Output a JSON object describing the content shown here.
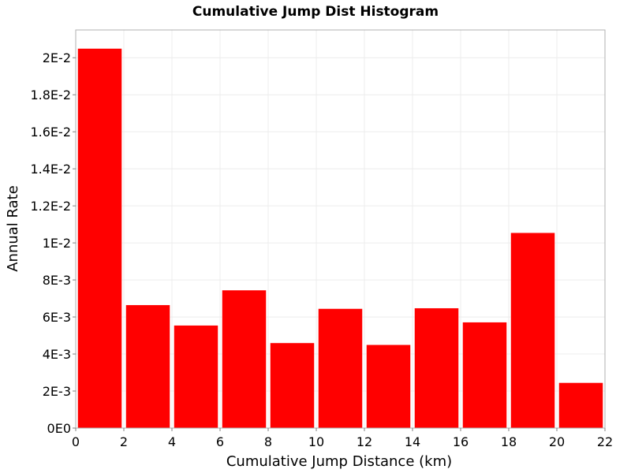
{
  "chart_data": {
    "type": "bar",
    "title": "Cumulative Jump Dist Histogram",
    "xlabel": "Cumulative Jump Distance (km)",
    "ylabel": "Annual Rate",
    "xlim": [
      0,
      22
    ],
    "ylim": [
      0,
      0.0215
    ],
    "x_ticks": [
      {
        "value": 0,
        "label": "0"
      },
      {
        "value": 2,
        "label": "2"
      },
      {
        "value": 4,
        "label": "4"
      },
      {
        "value": 6,
        "label": "6"
      },
      {
        "value": 8,
        "label": "8"
      },
      {
        "value": 10,
        "label": "10"
      },
      {
        "value": 12,
        "label": "12"
      },
      {
        "value": 14,
        "label": "14"
      },
      {
        "value": 16,
        "label": "16"
      },
      {
        "value": 18,
        "label": "18"
      },
      {
        "value": 20,
        "label": "20"
      },
      {
        "value": 22,
        "label": "22"
      }
    ],
    "y_ticks": [
      {
        "value": 0,
        "label": "0E0"
      },
      {
        "value": 0.002,
        "label": "2E-3"
      },
      {
        "value": 0.004,
        "label": "4E-3"
      },
      {
        "value": 0.006,
        "label": "6E-3"
      },
      {
        "value": 0.008,
        "label": "8E-3"
      },
      {
        "value": 0.01,
        "label": "1E-2"
      },
      {
        "value": 0.012,
        "label": "1.2E-2"
      },
      {
        "value": 0.014,
        "label": "1.4E-2"
      },
      {
        "value": 0.016,
        "label": "1.6E-2"
      },
      {
        "value": 0.018,
        "label": "1.8E-2"
      },
      {
        "value": 0.02,
        "label": "2E-2"
      }
    ],
    "bars": [
      {
        "x_start": 0,
        "x_end": 2,
        "value": 0.0205
      },
      {
        "x_start": 2,
        "x_end": 4,
        "value": 0.00665
      },
      {
        "x_start": 4,
        "x_end": 6,
        "value": 0.00555
      },
      {
        "x_start": 6,
        "x_end": 8,
        "value": 0.00745
      },
      {
        "x_start": 8,
        "x_end": 10,
        "value": 0.0046
      },
      {
        "x_start": 10,
        "x_end": 12,
        "value": 0.00645
      },
      {
        "x_start": 12,
        "x_end": 14,
        "value": 0.0045
      },
      {
        "x_start": 14,
        "x_end": 16,
        "value": 0.00648
      },
      {
        "x_start": 16,
        "x_end": 18,
        "value": 0.00572
      },
      {
        "x_start": 18,
        "x_end": 20,
        "value": 0.01055
      },
      {
        "x_start": 20,
        "x_end": 22,
        "value": 0.00245
      }
    ],
    "grid": true,
    "legend": "none",
    "colors": {
      "bar": "#ff0000",
      "grid": "#ececec",
      "frame": "#b0b0b0",
      "background": "#ffffff"
    }
  }
}
